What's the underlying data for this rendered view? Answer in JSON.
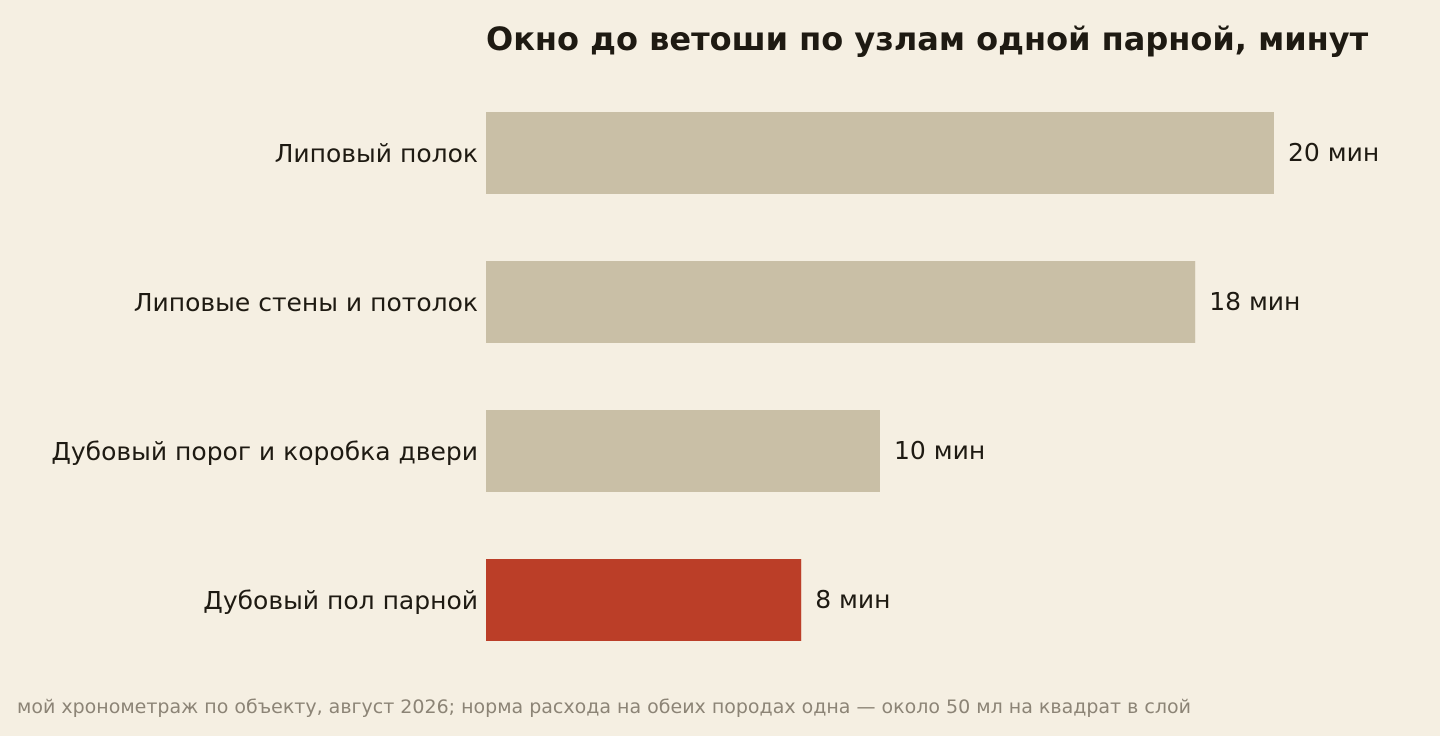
{
  "chart_data": {
    "type": "bar",
    "orientation": "horizontal",
    "title": "Окно до ветоши по узлам одной парной, минут",
    "xlabel": "",
    "ylabel": "",
    "xlim": [
      0,
      20
    ],
    "grid": false,
    "legend": "none",
    "categories": [
      "Липовый полок",
      "Липовые стены и потолок",
      "Дубовый порог и коробка двери",
      "Дубовый пол парной"
    ],
    "values": [
      20,
      18,
      10,
      8
    ],
    "value_labels": [
      "20 мин",
      "18 мин",
      "10 мин",
      "8 мин"
    ],
    "highlight_index": 3,
    "colors": {
      "bar": "#c9bfa6",
      "highlight": "#bb3e28",
      "background": "#f5efe2",
      "text": "#1e1a12",
      "footnote": "#8c8476"
    }
  },
  "footnote": "мой хронометраж по объекту, август 2026; норма расхода на обеих породах одна — около 50 мл на квадрат в слой"
}
